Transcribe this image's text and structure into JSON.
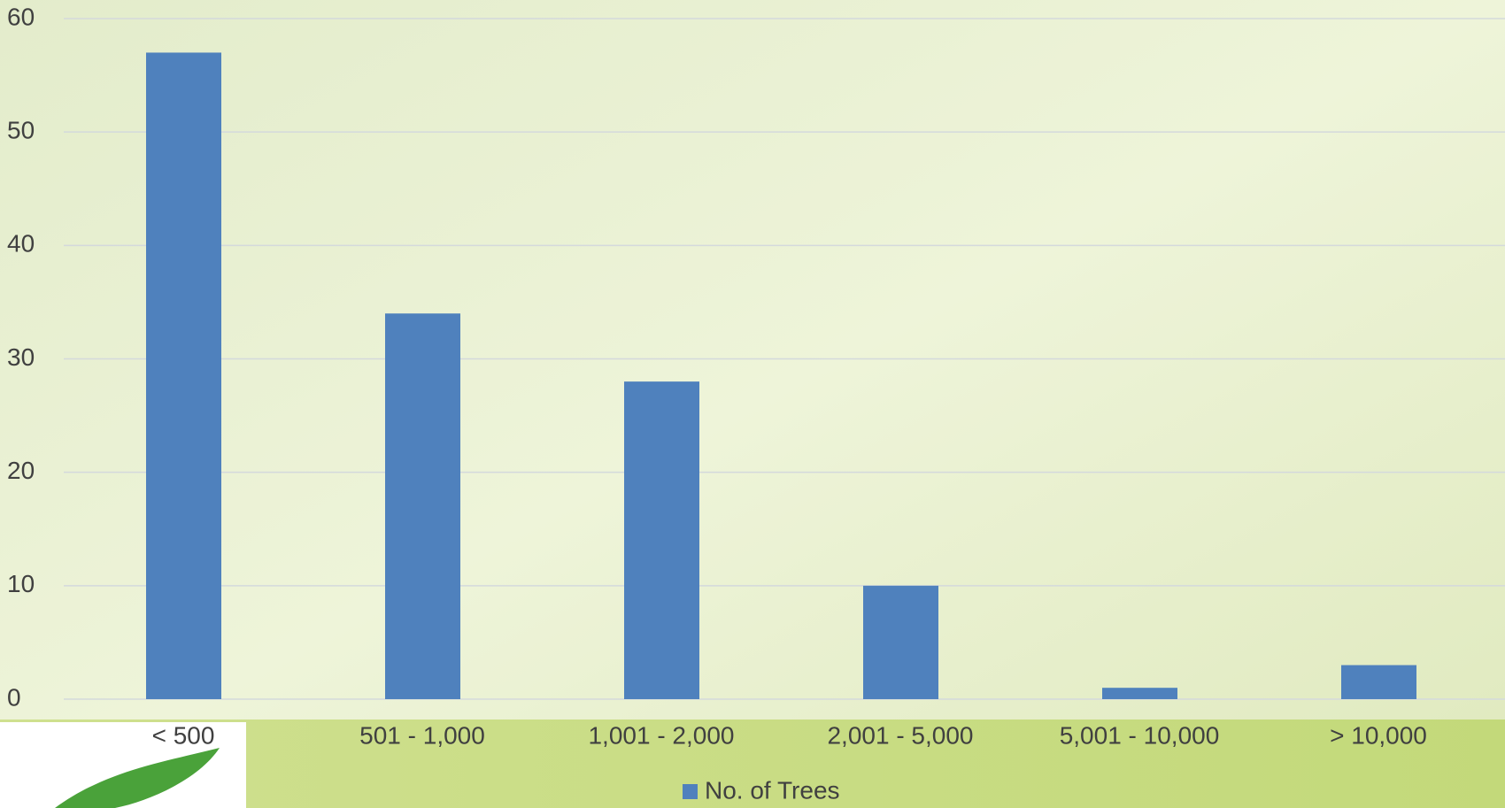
{
  "chart_data": {
    "type": "bar",
    "categories": [
      "< 500",
      "501 - 1,000",
      "1,001 - 2,000",
      "2,001 - 5,000",
      "5,001 - 10,000",
      "> 10,000"
    ],
    "series": [
      {
        "name": "No. of Trees",
        "color": "#4f81bd",
        "values": [
          57,
          34,
          28,
          10,
          1,
          3
        ]
      }
    ],
    "ylim": [
      0,
      60
    ],
    "yticks": [
      0,
      10,
      20,
      30,
      40,
      50,
      60
    ],
    "grid": true,
    "legend": "bottom"
  }
}
